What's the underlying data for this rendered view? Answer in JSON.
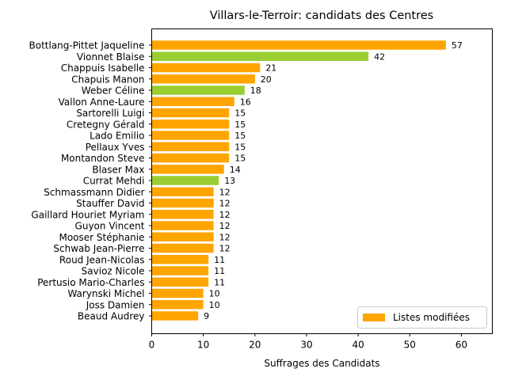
{
  "chart_data": {
    "type": "bar",
    "orientation": "horizontal",
    "title": "Villars-le-Terroir: candidats des Centres",
    "xlabel": "Suffrages des Candidats",
    "ylabel": "",
    "xlim": [
      0,
      66
    ],
    "x_ticks": [
      0,
      10,
      20,
      30,
      40,
      50,
      60
    ],
    "grid": false,
    "legend": {
      "placement": "lower-right",
      "entries": [
        {
          "label": "Listes modifiées",
          "color": "#ffa500"
        }
      ]
    },
    "colors": {
      "modified": "#ffa500",
      "other": "#9acd32"
    },
    "categories": [
      "Bottlang-Pittet Jaqueline",
      "Vionnet Blaise",
      "Chappuis Isabelle",
      "Chapuis Manon",
      "Weber Céline",
      "Vallon Anne-Laure",
      "Sartorelli Luigi",
      "Cretegny Gérald",
      "Lado Emilio",
      "Pellaux Yves",
      "Montandon Steve",
      "Blaser Max",
      "Currat Mehdi",
      "Schmassmann Didier",
      "Stauffer David",
      "Gaillard Houriet Myriam",
      "Guyon Vincent",
      "Mooser Stéphanie",
      "Schwab Jean-Pierre",
      "Roud Jean-Nicolas",
      "Savioz Nicole",
      "Pertusio Mario-Charles",
      "Warynski Michel",
      "Joss Damien",
      "Beaud Audrey"
    ],
    "values": [
      57,
      42,
      21,
      20,
      18,
      16,
      15,
      15,
      15,
      15,
      15,
      14,
      13,
      12,
      12,
      12,
      12,
      12,
      12,
      11,
      11,
      11,
      10,
      10,
      9
    ],
    "bar_colors": [
      "#ffa500",
      "#9acd32",
      "#ffa500",
      "#ffa500",
      "#9acd32",
      "#ffa500",
      "#ffa500",
      "#ffa500",
      "#ffa500",
      "#ffa500",
      "#ffa500",
      "#ffa500",
      "#9acd32",
      "#ffa500",
      "#ffa500",
      "#ffa500",
      "#ffa500",
      "#ffa500",
      "#ffa500",
      "#ffa500",
      "#ffa500",
      "#ffa500",
      "#ffa500",
      "#ffa500",
      "#ffa500"
    ]
  }
}
